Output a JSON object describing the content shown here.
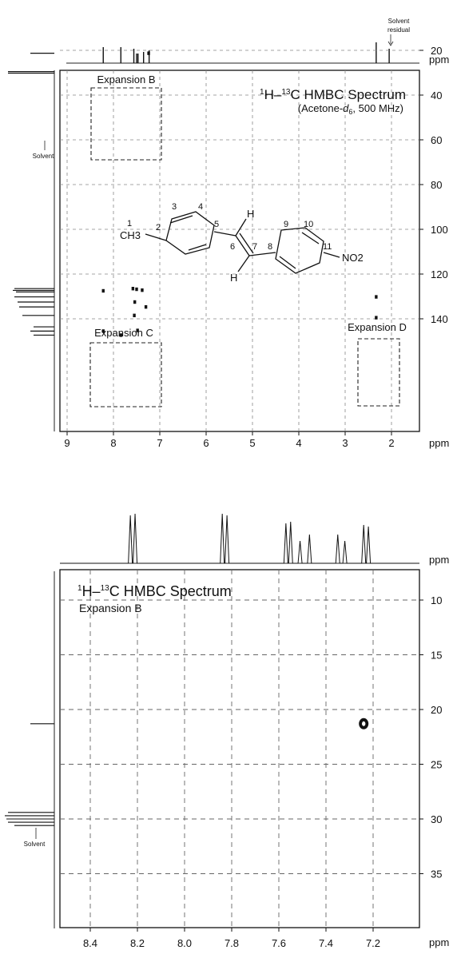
{
  "chart_data": [
    {
      "type": "scatter",
      "subtype": "2D HMBC NMR contour plot",
      "title": "1H–13C HMBC Spectrum",
      "subtitle": "(Acetone-d6, 500 MHz)",
      "xlabel": "ppm",
      "ylabel": "ppm",
      "xlim": [
        9,
        1.5
      ],
      "ylim": [
        10,
        155
      ],
      "x_ticks": [
        9,
        8,
        7,
        6,
        5,
        4,
        3,
        2
      ],
      "y_ticks": [
        20,
        40,
        60,
        80,
        100,
        120,
        140
      ],
      "grid": true,
      "top_projection_label": "Solvent residual",
      "side_projection_label": "Solvent",
      "expansion_labels": [
        "Expansion B",
        "Expansion C",
        "Expansion D"
      ],
      "structure": {
        "methyl": "CH3",
        "nitro": "NO2",
        "hydrogens": [
          "H",
          "H"
        ],
        "atom_numbers": [
          "1",
          "2",
          "3",
          "4",
          "5",
          "6",
          "7",
          "8",
          "9",
          "10",
          "11"
        ]
      },
      "series": [
        {
          "points": [
            {
              "x": 7.24,
              "y": 21.3
            },
            {
              "x": 8.22,
              "y": 127.5
            },
            {
              "x": 7.58,
              "y": 126.5
            },
            {
              "x": 7.5,
              "y": 126.8
            },
            {
              "x": 7.38,
              "y": 127.2
            },
            {
              "x": 7.54,
              "y": 132.5
            },
            {
              "x": 7.3,
              "y": 134.7
            },
            {
              "x": 7.55,
              "y": 138.5
            },
            {
              "x": 8.22,
              "y": 145.5
            },
            {
              "x": 7.84,
              "y": 147.3
            },
            {
              "x": 7.48,
              "y": 145.2
            },
            {
              "x": 2.33,
              "y": 130.2
            },
            {
              "x": 2.33,
              "y": 139.5
            }
          ]
        }
      ]
    },
    {
      "type": "scatter",
      "subtype": "2D HMBC NMR contour plot (expansion)",
      "title": "1H–13C HMBC Spectrum",
      "subtitle": "Expansion B",
      "xlabel": "ppm",
      "ylabel": "ppm",
      "xlim": [
        8.55,
        7.0
      ],
      "ylim": [
        5,
        40
      ],
      "x_ticks": [
        8.4,
        8.2,
        8.0,
        7.8,
        7.6,
        7.4,
        7.2
      ],
      "y_ticks": [
        10,
        15,
        20,
        25,
        30,
        35
      ],
      "grid": true,
      "side_projection_label": "Solvent",
      "top_peaks_ppm": [
        8.23,
        8.21,
        7.84,
        7.82,
        7.57,
        7.55,
        7.51,
        7.47,
        7.35,
        7.32,
        7.24,
        7.22
      ],
      "series": [
        {
          "points": [
            {
              "x": 7.24,
              "y": 21.3
            }
          ]
        }
      ]
    }
  ]
}
